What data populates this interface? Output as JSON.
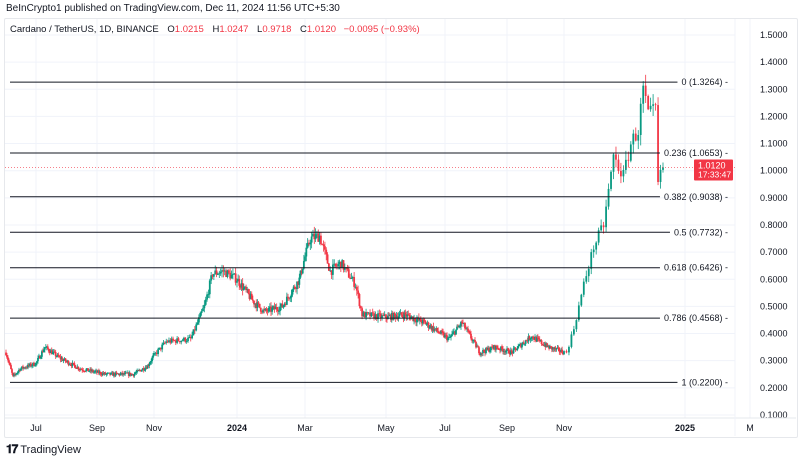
{
  "header": {
    "published": "BeInCrypto1 published on TradingView.com, Dec 11, 2024 11:56 UTC+5:30",
    "symbol": "Cardano / TetherUS, 1D, BINANCE",
    "o_label": "O",
    "o": "1.0215",
    "h_label": "H",
    "h": "1.0247",
    "l_label": "L",
    "l": "0.9718",
    "c_label": "C",
    "c": "1.0120",
    "change": "−0.0095 (−0.93%)"
  },
  "footer": {
    "brand": "TradingView",
    "logo": "TV"
  },
  "current_price": {
    "value": "1.0120",
    "countdown": "17:33:47",
    "price": 1.012,
    "color": "#f23645"
  },
  "colors": {
    "up": "#089981",
    "down": "#f23645",
    "fib": "#131722"
  },
  "chart_data": {
    "type": "candlestick",
    "title": "",
    "ylim": [
      0.1,
      1.5
    ],
    "y_ticks": [
      "1.5000",
      "1.4000",
      "1.3000",
      "1.2000",
      "1.1000",
      "1.0000",
      "0.9000",
      "0.8000",
      "0.7000",
      "0.6000",
      "0.5000",
      "0.4000",
      "0.3000",
      "0.2000",
      "0.1000"
    ],
    "x_ticks": [
      {
        "label": "Jul",
        "date": "2023-07-01",
        "bold": false
      },
      {
        "label": "Sep",
        "date": "2023-09-01",
        "bold": false
      },
      {
        "label": "Nov",
        "date": "2023-11-01",
        "bold": false
      },
      {
        "label": "2024",
        "date": "2024-01-01",
        "bold": true
      },
      {
        "label": "Mar",
        "date": "2024-03-01",
        "bold": false
      },
      {
        "label": "May",
        "date": "2024-05-01",
        "bold": false
      },
      {
        "label": "Jul",
        "date": "2024-07-01",
        "bold": false
      },
      {
        "label": "Sep",
        "date": "2024-09-01",
        "bold": false
      },
      {
        "label": "Nov",
        "date": "2024-11-01",
        "bold": false
      },
      {
        "label": "2025",
        "date": "2025-01-01",
        "bold": true
      },
      {
        "label": "M",
        "date": "2025-03-01",
        "bold": false
      }
    ],
    "fib_levels": [
      {
        "label": "0 (1.3264)",
        "value": 1.3264
      },
      {
        "label": "0.236 (1.0653)",
        "value": 1.0653
      },
      {
        "label": "0.382 (0.9038)",
        "value": 0.9038
      },
      {
        "label": "0.5 (0.7732)",
        "value": 0.7732
      },
      {
        "label": "0.618 (0.6426)",
        "value": 0.6426
      },
      {
        "label": "0.786 (0.4568)",
        "value": 0.4568
      },
      {
        "label": "1 (0.2200)",
        "value": 0.22
      }
    ],
    "approx_closes": [
      [
        "2023-06-01",
        0.33
      ],
      [
        "2023-06-08",
        0.24
      ],
      [
        "2023-06-15",
        0.27
      ],
      [
        "2023-07-01",
        0.29
      ],
      [
        "2023-07-10",
        0.35
      ],
      [
        "2023-07-25",
        0.31
      ],
      [
        "2023-08-15",
        0.27
      ],
      [
        "2023-09-10",
        0.25
      ],
      [
        "2023-10-10",
        0.25
      ],
      [
        "2023-10-25",
        0.28
      ],
      [
        "2023-11-10",
        0.37
      ],
      [
        "2023-11-28",
        0.38
      ],
      [
        "2023-12-08",
        0.5
      ],
      [
        "2023-12-14",
        0.62
      ],
      [
        "2023-12-22",
        0.63
      ],
      [
        "2024-01-01",
        0.6
      ],
      [
        "2024-01-15",
        0.52
      ],
      [
        "2024-01-25",
        0.48
      ],
      [
        "2024-02-10",
        0.5
      ],
      [
        "2024-02-25",
        0.6
      ],
      [
        "2024-03-05",
        0.75
      ],
      [
        "2024-03-12",
        0.76
      ],
      [
        "2024-03-20",
        0.63
      ],
      [
        "2024-03-28",
        0.66
      ],
      [
        "2024-04-08",
        0.58
      ],
      [
        "2024-04-13",
        0.47
      ],
      [
        "2024-05-01",
        0.46
      ],
      [
        "2024-05-20",
        0.47
      ],
      [
        "2024-06-10",
        0.44
      ],
      [
        "2024-07-05",
        0.38
      ],
      [
        "2024-07-18",
        0.44
      ],
      [
        "2024-08-05",
        0.33
      ],
      [
        "2024-08-20",
        0.35
      ],
      [
        "2024-09-06",
        0.33
      ],
      [
        "2024-09-27",
        0.39
      ],
      [
        "2024-10-15",
        0.35
      ],
      [
        "2024-11-02",
        0.33
      ],
      [
        "2024-11-05",
        0.42
      ],
      [
        "2024-11-09",
        0.58
      ],
      [
        "2024-11-13",
        0.72
      ],
      [
        "2024-11-17",
        0.8
      ],
      [
        "2024-11-21",
        1.05
      ],
      [
        "2024-11-25",
        0.98
      ],
      [
        "2024-11-28",
        1.1
      ],
      [
        "2024-12-01",
        1.15
      ],
      [
        "2024-12-03",
        1.3
      ],
      [
        "2024-12-05",
        1.2
      ],
      [
        "2024-12-08",
        1.22
      ],
      [
        "2024-12-09",
        0.95
      ],
      [
        "2024-12-11",
        1.012
      ]
    ]
  }
}
